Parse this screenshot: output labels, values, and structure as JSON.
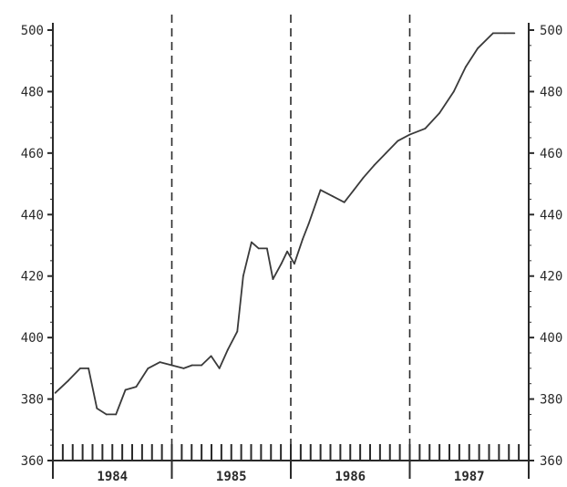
{
  "chart_data": {
    "type": "line",
    "title": "",
    "xlabel": "",
    "ylabel": "",
    "ylim": [
      360,
      500
    ],
    "y_ticks": [
      360,
      380,
      400,
      420,
      440,
      460,
      480,
      500
    ],
    "y_tick_labels": [
      "360",
      "380",
      "400",
      "420",
      "440",
      "460",
      "480",
      "500"
    ],
    "right_y_tick_labels": [
      "360",
      "380",
      "400",
      "420",
      "440",
      "460",
      "480",
      "500"
    ],
    "xlim": [
      1983.75,
      1987.75
    ],
    "year_labels": [
      "1984",
      "1985",
      "1986",
      "1987"
    ],
    "year_label_positions": [
      1984.25,
      1985.25,
      1986.25,
      1987.25
    ],
    "period_dividers": [
      1984.75,
      1985.75,
      1986.75
    ],
    "grid": false,
    "line_color": "#3a3a3a",
    "series": [
      {
        "x": [
          1983.77,
          1983.88,
          1983.98,
          1984.05,
          1984.12,
          1984.2,
          1984.28,
          1984.36,
          1984.45,
          1984.55,
          1984.65,
          1984.75,
          1984.85,
          1984.92,
          1985.0,
          1985.08,
          1985.15,
          1985.22,
          1985.3,
          1985.35,
          1985.42,
          1985.48,
          1985.55,
          1985.6,
          1985.67,
          1985.72,
          1985.78,
          1985.85,
          1985.9,
          1986.0,
          1986.1,
          1986.2,
          1986.28,
          1986.36,
          1986.45,
          1986.55,
          1986.65,
          1986.75,
          1986.88,
          1987.0,
          1987.12,
          1987.22,
          1987.32,
          1987.45,
          1987.55,
          1987.63
        ],
        "values": [
          382,
          386,
          390,
          390,
          377,
          375,
          375,
          383,
          384,
          390,
          392,
          391,
          390,
          391,
          391,
          394,
          390,
          396,
          402,
          420,
          431,
          429,
          429,
          419,
          424,
          428,
          424,
          432,
          437,
          448,
          446,
          444,
          448,
          452,
          456,
          460,
          464,
          466,
          468,
          473,
          480,
          488,
          494,
          499,
          499,
          499
        ]
      }
    ]
  }
}
